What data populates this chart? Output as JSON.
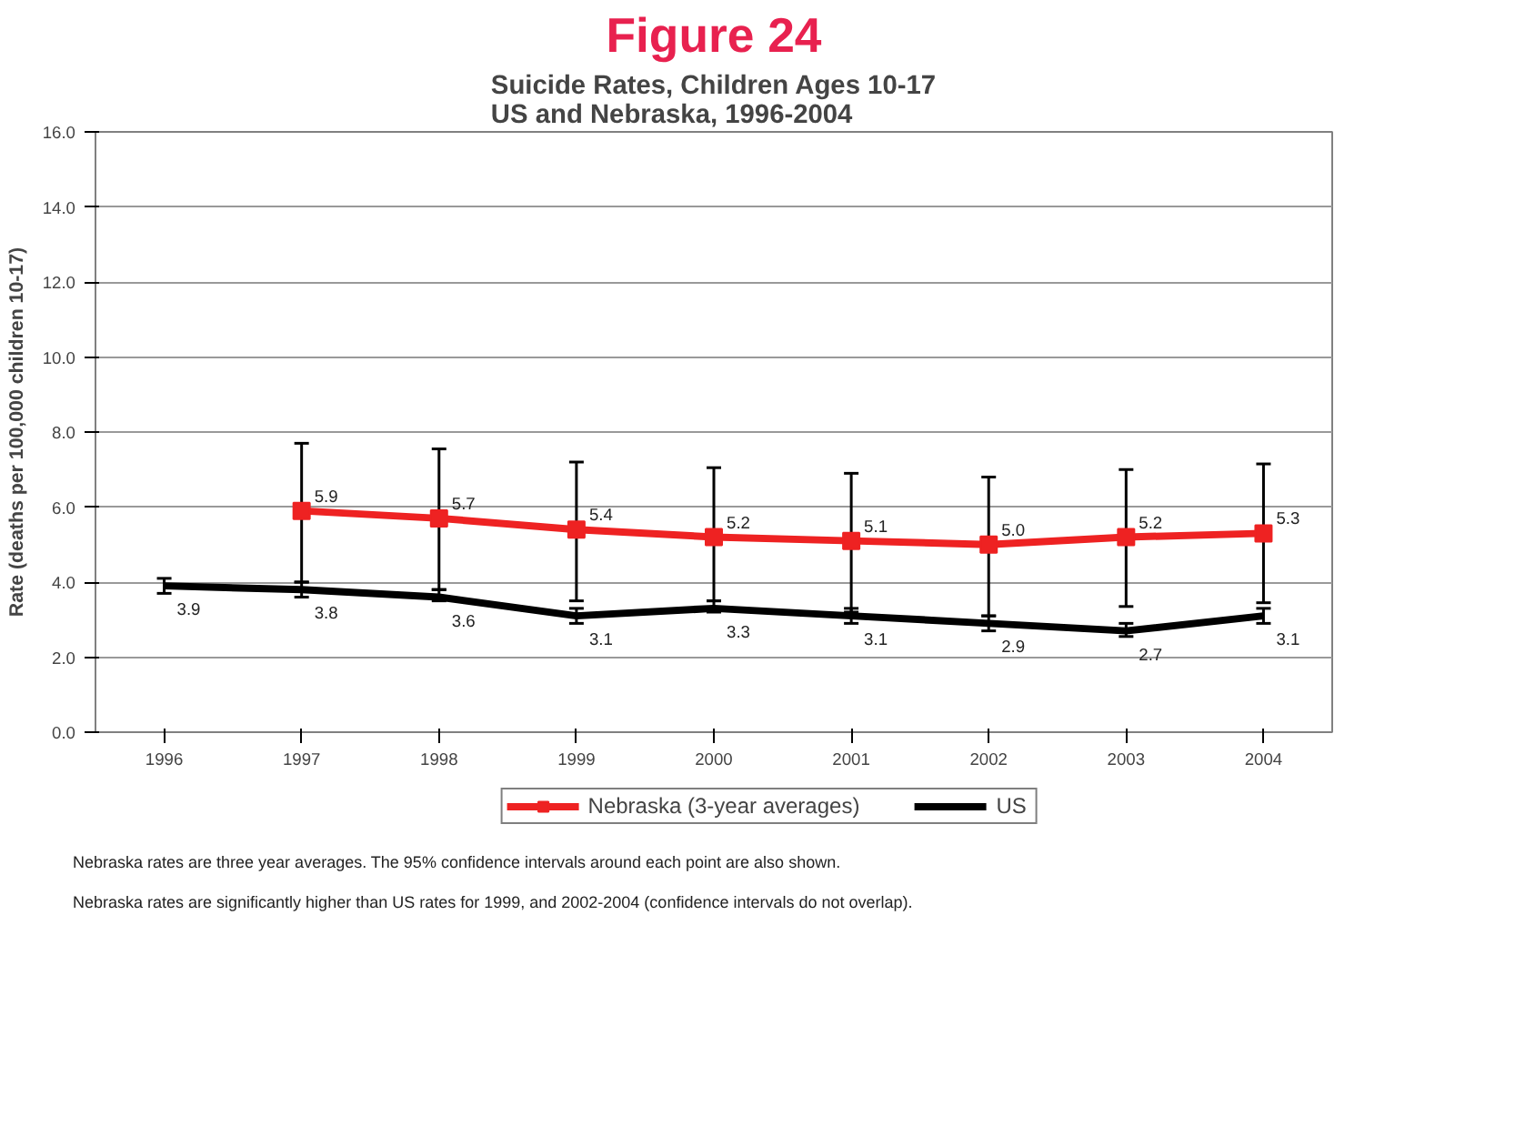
{
  "chart_data": {
    "type": "line",
    "title": "Suicide Rates, Children Ages 10-17\nUS and Nebraska, 1996-2004",
    "ylabel": "Rate (deaths per 100,000 children 10-17)",
    "annotations": [
      "Figure 24",
      "Nebraska rates are three year averages.  The 95% confidence intervals around each point are also shown.",
      "Nebraska rates are significantly higher than US rates for 1999, and 2002-2004 (confidence intervals do not overlap)."
    ],
    "categories": [
      "1996",
      "1997",
      "1998",
      "1999",
      "2000",
      "2001",
      "2002",
      "2003",
      "2004"
    ],
    "series": [
      {
        "name": "Nebraska (3-year averages)",
        "color": "#ee2222",
        "marker": "square",
        "values": [
          null,
          5.9,
          5.7,
          5.4,
          5.2,
          5.1,
          5.0,
          5.2,
          5.3
        ],
        "value_labels": [
          null,
          "5.9",
          "5.7",
          "5.4",
          "5.2",
          "5.1",
          "5.0",
          "5.2",
          "5.3"
        ],
        "errors": [
          null,
          [
            4.0,
            7.7
          ],
          [
            3.8,
            7.55
          ],
          [
            3.5,
            7.2
          ],
          [
            3.5,
            7.05
          ],
          [
            3.2,
            6.9
          ],
          [
            3.1,
            6.8
          ],
          [
            3.35,
            7.0
          ],
          [
            3.45,
            7.15
          ]
        ]
      },
      {
        "name": "US",
        "color": "#000000",
        "marker": "none",
        "values": [
          3.9,
          3.8,
          3.6,
          3.1,
          3.3,
          3.1,
          2.9,
          2.7,
          3.1
        ],
        "value_labels": [
          "3.9",
          "3.8",
          "3.6",
          "3.1",
          "3.3",
          "3.1",
          "2.9",
          "2.7",
          "3.1"
        ],
        "errors": [
          [
            3.7,
            4.1
          ],
          [
            3.6,
            4.0
          ],
          [
            3.5,
            3.8
          ],
          [
            2.9,
            3.3
          ],
          [
            3.2,
            3.5
          ],
          [
            2.9,
            3.3
          ],
          [
            2.7,
            3.1
          ],
          [
            2.55,
            2.9
          ],
          [
            2.9,
            3.3
          ]
        ]
      }
    ],
    "ylim": [
      0,
      16
    ],
    "yticks": [
      {
        "value": 0,
        "label": "0.0"
      },
      {
        "value": 2,
        "label": "2.0"
      },
      {
        "value": 4,
        "label": "4.0"
      },
      {
        "value": 6,
        "label": "6.0"
      },
      {
        "value": 8,
        "label": "8.0"
      },
      {
        "value": 10,
        "label": "10.0"
      },
      {
        "value": 12,
        "label": "12.0"
      },
      {
        "value": 14,
        "label": "14.0"
      },
      {
        "value": 16,
        "label": "16.0"
      }
    ],
    "grid": "y",
    "legend": "bottom",
    "line_style": "solid"
  }
}
